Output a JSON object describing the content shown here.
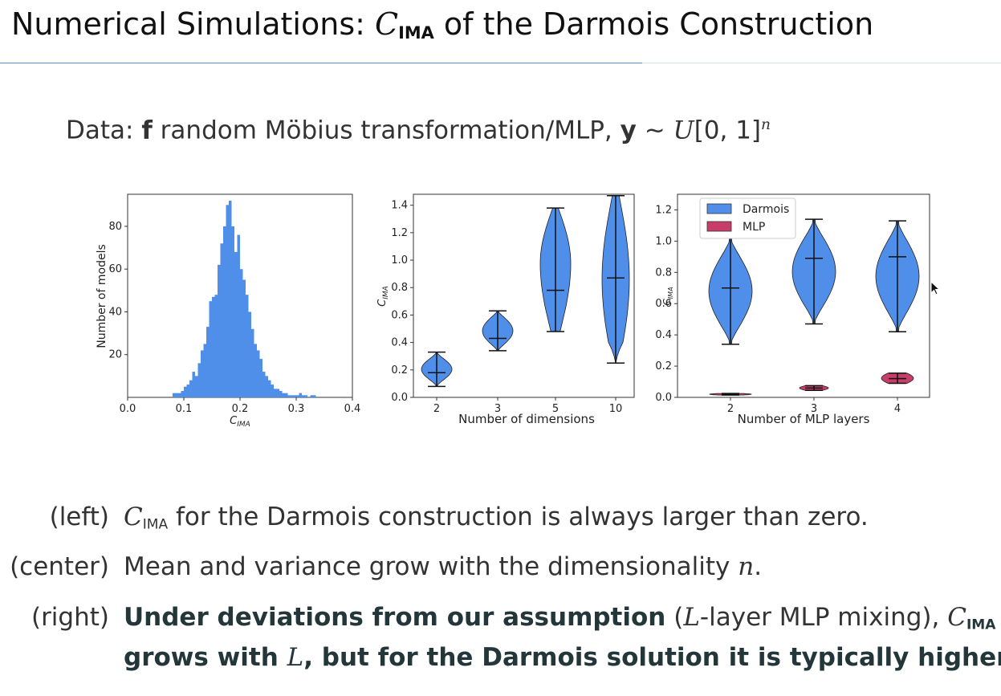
{
  "slide": {
    "title_prefix": "Numerical Simulations: ",
    "title_math": "C",
    "title_sub": "IMA",
    "title_suffix": " of the Darmois Construction"
  },
  "data_line": {
    "prefix": "Data: ",
    "f": "f",
    "mid": " random Möbius transformation/MLP, ",
    "y": "y",
    "dist": " ∼ ",
    "U": "U",
    "interval": "[0, 1]",
    "exp": "n"
  },
  "bullets": [
    {
      "label": "(left)",
      "math": "C",
      "sub": "IMA",
      "text": " for the Darmois construction is always larger than zero."
    },
    {
      "label": "(center)",
      "text": "Mean and variance grow with the dimensionality ",
      "math": "n",
      "end": "."
    },
    {
      "label": "(right)",
      "bold1": "Under deviations from our assumption",
      "paren_open": " (",
      "math_L": "L",
      "paren_text": "-layer MLP mixing), ",
      "math": "C",
      "sub": "IMA",
      "line2_a": "grows with ",
      "line2_L": "L",
      "line2_b": ", but for the Darmois solution it is typically higher."
    }
  ],
  "colors": {
    "darmois": "#4f8fea",
    "mlp": "#c83e6a",
    "rule": "#4a90d9"
  },
  "chart_data": [
    {
      "type": "bar",
      "title": "",
      "xlabel": "C_IMA",
      "ylabel": "Number of models",
      "xlim": [
        0.0,
        0.4
      ],
      "ylim": [
        0,
        95
      ],
      "xticks": [
        "0.0",
        "0.1",
        "0.2",
        "0.3",
        "0.4"
      ],
      "yticks": [
        "20",
        "40",
        "60",
        "80"
      ],
      "bin_width": 0.005,
      "bin_starts": [
        0.08,
        0.085,
        0.09,
        0.095,
        0.1,
        0.105,
        0.11,
        0.115,
        0.12,
        0.125,
        0.13,
        0.135,
        0.14,
        0.145,
        0.15,
        0.155,
        0.16,
        0.165,
        0.17,
        0.175,
        0.18,
        0.185,
        0.19,
        0.195,
        0.2,
        0.205,
        0.21,
        0.215,
        0.22,
        0.225,
        0.23,
        0.235,
        0.24,
        0.245,
        0.25,
        0.255,
        0.26,
        0.265,
        0.27,
        0.275,
        0.28,
        0.285,
        0.29,
        0.295,
        0.3,
        0.305,
        0.31,
        0.315,
        0.32,
        0.325,
        0.33
      ],
      "values": [
        2,
        2,
        2,
        3,
        5,
        6,
        8,
        12,
        10,
        16,
        22,
        25,
        33,
        45,
        47,
        48,
        62,
        72,
        80,
        90,
        92,
        80,
        68,
        76,
        60,
        55,
        48,
        40,
        32,
        25,
        22,
        18,
        12,
        10,
        8,
        6,
        4,
        4,
        3,
        2,
        2,
        1,
        1,
        1,
        1,
        2,
        1,
        1,
        0,
        1,
        1
      ]
    },
    {
      "type": "violin",
      "title": "",
      "xlabel": "Number of dimensions",
      "ylabel": "C_IMA",
      "ylim": [
        0.0,
        1.48
      ],
      "yticks": [
        "0.0",
        "0.2",
        "0.4",
        "0.6",
        "0.8",
        "1.0",
        "1.2",
        "1.4"
      ],
      "categories": [
        "2",
        "3",
        "5",
        "10"
      ],
      "series": [
        {
          "min": 0.08,
          "max": 0.33,
          "mean": 0.18
        },
        {
          "min": 0.34,
          "max": 0.63,
          "mean": 0.43
        },
        {
          "min": 0.48,
          "max": 1.38,
          "mean": 0.78
        },
        {
          "min": 0.25,
          "max": 1.47,
          "mean": 0.87
        }
      ]
    },
    {
      "type": "violin",
      "title": "",
      "xlabel": "Number of MLP layers",
      "ylabel": "C_IMA",
      "ylim": [
        0.0,
        1.3
      ],
      "yticks": [
        "0.0",
        "0.2",
        "0.4",
        "0.6",
        "0.8",
        "1.0",
        "1.2"
      ],
      "categories": [
        "2",
        "3",
        "4"
      ],
      "legend": {
        "placement": "top-left",
        "entries": [
          "Darmois",
          "MLP"
        ]
      },
      "series": [
        {
          "name": "Darmois",
          "values": [
            {
              "min": 0.34,
              "max": 1.02,
              "mean": 0.7
            },
            {
              "min": 0.47,
              "max": 1.14,
              "mean": 0.89
            },
            {
              "min": 0.42,
              "max": 1.13,
              "mean": 0.9
            }
          ]
        },
        {
          "name": "MLP",
          "values": [
            {
              "min": 0.015,
              "max": 0.025,
              "mean": 0.02
            },
            {
              "min": 0.045,
              "max": 0.075,
              "mean": 0.06
            },
            {
              "min": 0.09,
              "max": 0.155,
              "mean": 0.12
            }
          ]
        }
      ]
    }
  ]
}
